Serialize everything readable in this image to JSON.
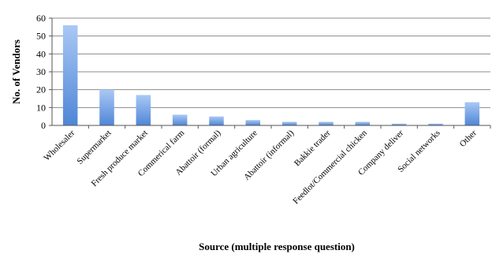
{
  "chart_data": {
    "type": "bar",
    "title": "",
    "xlabel": "Source (multiple response question)",
    "ylabel": "No. of Vendors",
    "ylim": [
      0,
      60
    ],
    "yticks": [
      0,
      10,
      20,
      30,
      40,
      50,
      60
    ],
    "grid": true,
    "legend": "none",
    "bar_color_top": "#a9c8f5",
    "bar_color_bottom": "#4f86d6",
    "categories": [
      "Wholesaler",
      "Supermarket",
      "Fresh produce market",
      "Commerical farm",
      "Abattoir (formal)",
      "Urban agriculture",
      "Abattoir (informal)",
      "Bakkie trader",
      "Feedlot/Commercial chicken",
      "Company deliver",
      "Social networks",
      "Other"
    ],
    "values": [
      56,
      20,
      17,
      6,
      5,
      3,
      2,
      2,
      2,
      1,
      1,
      13
    ]
  }
}
